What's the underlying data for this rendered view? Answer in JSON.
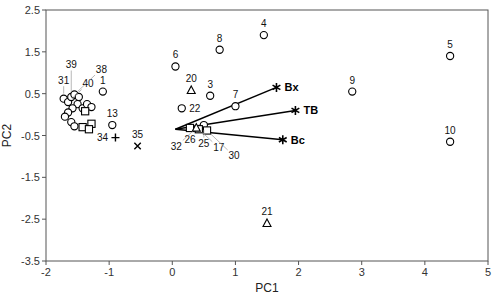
{
  "chart_data": {
    "type": "scatter",
    "xlabel": "PC1",
    "ylabel": "PC2",
    "xlim": [
      -2,
      5
    ],
    "ylim": [
      -3.5,
      2.5
    ],
    "xticks": [
      -2,
      -1,
      0,
      1,
      2,
      3,
      4,
      5
    ],
    "yticks": [
      -3.5,
      -2.5,
      -1.5,
      -0.5,
      0.5,
      1.5,
      2.5
    ],
    "series": [
      {
        "marker": "circle",
        "x": [
          -1.1,
          0.6,
          1.45,
          4.4,
          0.05,
          1.0,
          0.75,
          2.85,
          4.4,
          -0.95,
          0.15,
          0.5
        ],
        "y": [
          0.55,
          0.45,
          1.9,
          1.4,
          1.15,
          0.2,
          1.55,
          0.55,
          -0.65,
          -0.25,
          0.15,
          -0.25
        ],
        "labels": [
          "1",
          "3",
          "4",
          "5",
          "6",
          "7",
          "8",
          "9",
          "10",
          "13",
          "22",
          "25"
        ]
      },
      {
        "marker": "circle",
        "x": [
          -1.72,
          -1.65,
          -1.6,
          -1.55,
          -1.48,
          -1.5,
          -1.58,
          -1.65,
          -1.7,
          -1.6,
          -1.55,
          -1.42,
          -1.35,
          -1.28
        ],
        "y": [
          0.38,
          0.3,
          0.42,
          0.48,
          0.42,
          0.25,
          0.15,
          0.05,
          -0.05,
          -0.18,
          -0.28,
          0.15,
          0.25,
          0.18
        ],
        "labels": [
          "31",
          "40",
          "39",
          "38",
          null,
          null,
          null,
          null,
          null,
          null,
          null,
          null,
          null,
          null
        ]
      },
      {
        "marker": "square",
        "x": [
          0.28,
          0.42,
          0.55
        ],
        "y": [
          -0.32,
          -0.35,
          -0.38
        ],
        "labels": [
          "26",
          "17",
          "30"
        ]
      },
      {
        "marker": "square",
        "x": [
          -1.38,
          -1.28,
          -1.42,
          -1.32
        ],
        "y": [
          0.08,
          -0.22,
          -0.3,
          -0.35
        ]
      },
      {
        "marker": "triangle",
        "x": [
          0.3,
          1.5,
          0.38
        ],
        "y": [
          0.58,
          -2.6,
          -0.32
        ],
        "labels": [
          "20",
          "21",
          "32"
        ]
      },
      {
        "marker": "plus",
        "x": [
          -0.9
        ],
        "y": [
          -0.55
        ],
        "labels": [
          "34"
        ]
      },
      {
        "marker": "x",
        "x": [
          -0.55
        ],
        "y": [
          -0.75
        ],
        "labels": [
          "35"
        ]
      },
      {
        "type": "vector",
        "marker": "asterisk",
        "origin_x": 0.05,
        "origin_y": -0.35,
        "x": [
          1.65,
          1.95,
          1.75
        ],
        "y": [
          0.65,
          0.1,
          -0.6
        ],
        "labels": [
          "Bx",
          "TB",
          "Bc"
        ]
      }
    ]
  }
}
